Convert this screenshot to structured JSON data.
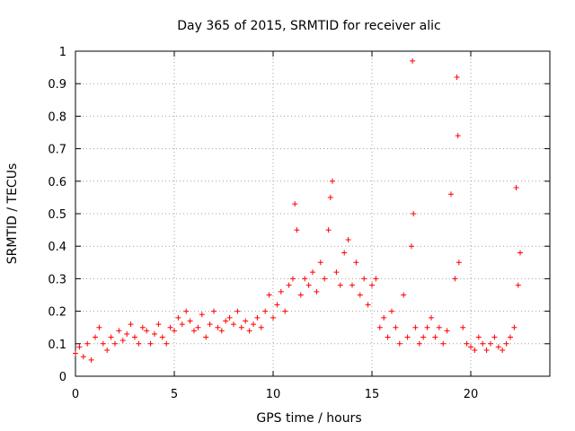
{
  "chart_data": {
    "type": "scatter",
    "title": "Day 365 of 2015, SRMTID for receiver alic",
    "xlabel": "GPS time / hours",
    "ylabel": "SRMTID / TECUs",
    "xlim": [
      0,
      24
    ],
    "ylim": [
      0,
      1
    ],
    "xticks": [
      0,
      5,
      10,
      15,
      20
    ],
    "xtick_labels": [
      "0",
      "5",
      "10",
      "15",
      "20"
    ],
    "yticks": [
      0,
      0.1,
      0.2,
      0.3,
      0.4,
      0.5,
      0.6,
      0.7,
      0.8,
      0.9,
      1
    ],
    "ytick_labels": [
      "0",
      "0.1",
      "0.2",
      "0.3",
      "0.4",
      "0.5",
      "0.6",
      "0.7",
      "0.8",
      "0.9",
      "1"
    ],
    "grid": true,
    "marker": "+",
    "color": "#ff0000",
    "series": [
      {
        "name": "SRMTID",
        "x": [
          0.0,
          0.2,
          0.4,
          0.6,
          0.8,
          1.0,
          1.2,
          1.4,
          1.6,
          1.8,
          2.0,
          2.2,
          2.4,
          2.6,
          2.8,
          3.0,
          3.2,
          3.4,
          3.6,
          3.8,
          4.0,
          4.2,
          4.4,
          4.6,
          4.8,
          5.0,
          5.2,
          5.4,
          5.6,
          5.8,
          6.0,
          6.2,
          6.4,
          6.6,
          6.8,
          7.0,
          7.2,
          7.4,
          7.6,
          7.8,
          8.0,
          8.2,
          8.4,
          8.6,
          8.8,
          9.0,
          9.2,
          9.4,
          9.6,
          9.8,
          10.0,
          10.2,
          10.4,
          10.6,
          10.8,
          11.0,
          11.1,
          11.2,
          11.4,
          11.6,
          11.8,
          12.0,
          12.2,
          12.4,
          12.6,
          12.8,
          12.9,
          13.0,
          13.2,
          13.4,
          13.6,
          13.8,
          14.0,
          14.2,
          14.4,
          14.6,
          14.8,
          15.0,
          15.2,
          15.4,
          15.6,
          15.8,
          16.0,
          16.2,
          16.4,
          16.6,
          16.8,
          17.0,
          17.05,
          17.1,
          17.2,
          17.4,
          17.6,
          17.8,
          18.0,
          18.2,
          18.4,
          18.6,
          18.8,
          19.0,
          19.2,
          19.3,
          19.35,
          19.4,
          19.6,
          19.8,
          20.0,
          20.2,
          20.4,
          20.6,
          20.8,
          21.0,
          21.2,
          21.4,
          21.6,
          21.8,
          22.0,
          22.2,
          22.3,
          22.4,
          22.5
        ],
        "y": [
          0.07,
          0.09,
          0.06,
          0.1,
          0.05,
          0.12,
          0.15,
          0.1,
          0.08,
          0.12,
          0.1,
          0.14,
          0.11,
          0.13,
          0.16,
          0.12,
          0.1,
          0.15,
          0.14,
          0.1,
          0.13,
          0.16,
          0.12,
          0.1,
          0.15,
          0.14,
          0.18,
          0.16,
          0.2,
          0.17,
          0.14,
          0.15,
          0.19,
          0.12,
          0.16,
          0.2,
          0.15,
          0.14,
          0.17,
          0.18,
          0.16,
          0.2,
          0.15,
          0.17,
          0.14,
          0.16,
          0.18,
          0.15,
          0.2,
          0.25,
          0.18,
          0.22,
          0.26,
          0.2,
          0.28,
          0.3,
          0.53,
          0.45,
          0.25,
          0.3,
          0.28,
          0.32,
          0.26,
          0.35,
          0.3,
          0.45,
          0.55,
          0.6,
          0.32,
          0.28,
          0.38,
          0.42,
          0.28,
          0.35,
          0.25,
          0.3,
          0.22,
          0.28,
          0.3,
          0.15,
          0.18,
          0.12,
          0.2,
          0.15,
          0.1,
          0.25,
          0.12,
          0.4,
          0.97,
          0.5,
          0.15,
          0.1,
          0.12,
          0.15,
          0.18,
          0.12,
          0.15,
          0.1,
          0.14,
          0.56,
          0.3,
          0.92,
          0.74,
          0.35,
          0.15,
          0.1,
          0.09,
          0.08,
          0.12,
          0.1,
          0.08,
          0.1,
          0.12,
          0.09,
          0.08,
          0.1,
          0.12,
          0.15,
          0.58,
          0.28,
          0.38
        ]
      }
    ]
  }
}
